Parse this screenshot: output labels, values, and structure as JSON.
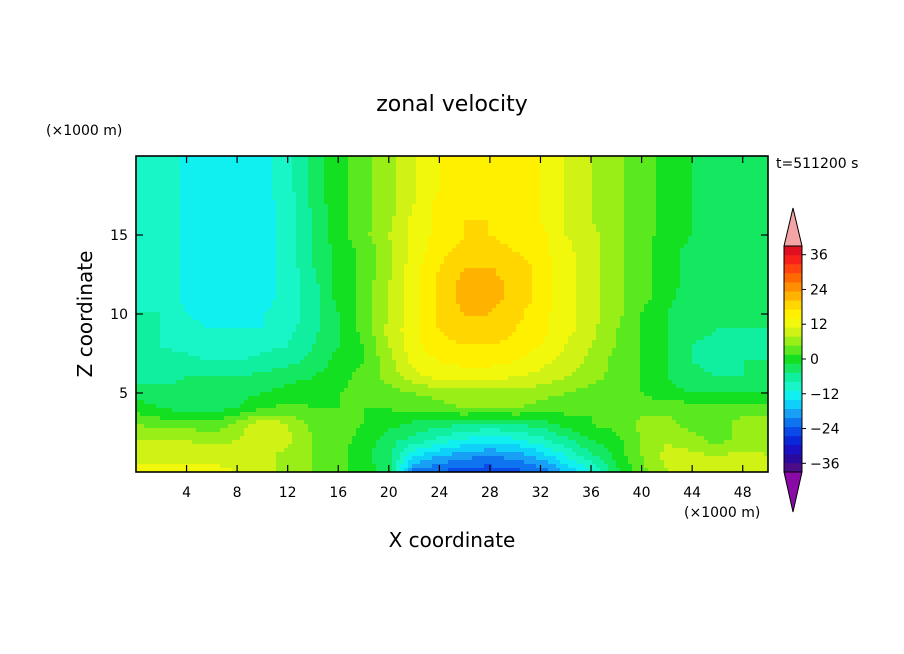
{
  "chart_data": {
    "type": "heatmap",
    "title": "zonal velocity",
    "xlabel": "X coordinate",
    "ylabel": "Z coordinate",
    "x_units": "(×1000 m)",
    "y_units": "(×1000 m)",
    "time_label": "t=511200 s",
    "xlim": [
      0,
      50
    ],
    "ylim": [
      0,
      20
    ],
    "x_ticks": [
      4,
      8,
      12,
      16,
      20,
      24,
      28,
      32,
      36,
      40,
      44,
      48
    ],
    "y_ticks": [
      5,
      10,
      15
    ],
    "colorbar": {
      "levels": [
        -42,
        -39,
        -36,
        -33,
        -30,
        -27,
        -24,
        -21,
        -18,
        -15,
        -12,
        -9,
        -6,
        -3,
        0,
        3,
        6,
        9,
        12,
        15,
        18,
        21,
        24,
        27,
        30,
        33,
        36,
        39,
        42
      ],
      "tick_labels": [
        "36",
        "24",
        "12",
        "0",
        "−12",
        "−24",
        "−36"
      ],
      "colors": [
        "#8a0aa8",
        "#4b0e88",
        "#2a0a9e",
        "#1a10c4",
        "#0a28d8",
        "#0a4ae8",
        "#0f74f0",
        "#18a0f6",
        "#0fd0f8",
        "#10f0f0",
        "#18f5c6",
        "#10eea0",
        "#14e860",
        "#12e020",
        "#5ae81e",
        "#9aee18",
        "#d0f214",
        "#f2f80c",
        "#fff000",
        "#ffd600",
        "#ffb200",
        "#ff8e00",
        "#ff6a00",
        "#ff4410",
        "#f8201a",
        "#e01020",
        "#f4a4a4"
      ]
    },
    "field": {
      "x": [
        0,
        2,
        4,
        6,
        8,
        10,
        12,
        14,
        16,
        18,
        20,
        22,
        24,
        26,
        28,
        30,
        32,
        34,
        36,
        38,
        40,
        42,
        44,
        46,
        48,
        50
      ],
      "z": [
        0,
        1,
        2,
        3,
        4,
        5,
        6,
        7,
        8,
        9,
        10,
        11,
        12,
        13,
        14,
        15,
        16,
        17,
        18,
        19,
        20
      ],
      "u": [
        [
          10,
          10,
          10,
          10,
          9,
          7,
          5,
          3,
          1,
          -2,
          -4,
          -22,
          -24,
          -26,
          -26,
          -25,
          -23,
          -18,
          -12,
          -4,
          2,
          6,
          8,
          9,
          9,
          8
        ],
        [
          8,
          8,
          8,
          8,
          8,
          7,
          5,
          3,
          1,
          -2,
          -5,
          -15,
          -18,
          -20,
          -21,
          -20,
          -17,
          -12,
          -7,
          -2,
          3,
          7,
          7,
          6,
          7,
          6
        ],
        [
          6,
          6,
          6,
          5,
          6,
          8,
          7,
          3,
          1,
          -1,
          -5,
          -7,
          -10,
          -13,
          -14,
          -13,
          -10,
          -7,
          -3,
          -1,
          3,
          6,
          4,
          2,
          4,
          5
        ],
        [
          3,
          2,
          2,
          1,
          4,
          9,
          6,
          2,
          1,
          0,
          -2,
          -4,
          -5,
          -6,
          -7,
          -6,
          -5,
          -2,
          0,
          1,
          4,
          4,
          2,
          2,
          4,
          4
        ],
        [
          -1,
          -3,
          -4,
          -4,
          -3,
          0,
          1,
          0,
          0,
          0,
          0,
          1,
          2,
          3,
          3,
          3,
          2,
          1,
          0,
          1,
          2,
          2,
          2,
          2,
          2,
          2
        ],
        [
          -5,
          -5,
          -5,
          -5,
          -4,
          -3,
          -2,
          -1,
          0,
          1,
          2,
          3,
          4,
          5,
          5,
          5,
          4,
          3,
          2,
          1,
          0,
          -2,
          -3,
          -3,
          -3,
          -3
        ],
        [
          -7,
          -7,
          -6,
          -6,
          -6,
          -5,
          -4,
          -3,
          -1,
          1,
          4,
          8,
          10,
          10,
          10,
          9,
          8,
          6,
          4,
          2,
          0,
          -3,
          -5,
          -6,
          -6,
          -5
        ],
        [
          -8,
          -8,
          -8,
          -9,
          -9,
          -8,
          -7,
          -5,
          -2,
          0,
          5,
          10,
          12,
          13,
          13,
          12,
          10,
          8,
          5,
          2,
          0,
          -3,
          -6,
          -7,
          -6,
          -6
        ],
        [
          -9,
          -9,
          -10,
          -11,
          -11,
          -10,
          -9,
          -6,
          -3,
          0,
          6,
          11,
          14,
          15,
          15,
          14,
          12,
          9,
          6,
          3,
          0,
          -3,
          -6,
          -7,
          -7,
          -6
        ],
        [
          -9,
          -9,
          -11,
          -12,
          -12,
          -12,
          -10,
          -7,
          -3,
          1,
          7,
          11,
          15,
          17,
          17,
          15,
          13,
          10,
          7,
          3,
          0,
          -3,
          -5,
          -6,
          -6,
          -6
        ],
        [
          -9,
          -9,
          -12,
          -13,
          -13,
          -12,
          -11,
          -7,
          -3,
          1,
          6,
          11,
          16,
          18,
          18,
          16,
          13,
          10,
          7,
          4,
          0,
          -3,
          -5,
          -6,
          -6,
          -6
        ],
        [
          -9,
          -10,
          -13,
          -13,
          -13,
          -13,
          -11,
          -7,
          -2,
          1,
          6,
          11,
          16,
          19,
          19,
          17,
          14,
          10,
          7,
          4,
          1,
          -2,
          -5,
          -5,
          -6,
          -6
        ],
        [
          -9,
          -10,
          -13,
          -14,
          -14,
          -13,
          -11,
          -7,
          -2,
          1,
          6,
          11,
          16,
          19,
          19,
          17,
          14,
          10,
          7,
          4,
          1,
          -2,
          -4,
          -5,
          -5,
          -5
        ],
        [
          -9,
          -10,
          -13,
          -14,
          -14,
          -13,
          -11,
          -6,
          -2,
          1,
          5,
          11,
          15,
          18,
          18,
          17,
          14,
          10,
          7,
          4,
          1,
          -2,
          -4,
          -5,
          -5,
          -5
        ],
        [
          -9,
          -10,
          -13,
          -14,
          -14,
          -13,
          -11,
          -6,
          -2,
          1,
          5,
          10,
          14,
          16,
          16,
          15,
          13,
          10,
          7,
          4,
          1,
          -2,
          -4,
          -4,
          -5,
          -5
        ],
        [
          -9,
          -10,
          -13,
          -14,
          -14,
          -13,
          -11,
          -6,
          -1,
          2,
          6,
          10,
          13,
          15,
          15,
          14,
          13,
          9,
          7,
          4,
          1,
          -1,
          -3,
          -4,
          -4,
          -4
        ],
        [
          -9,
          -10,
          -13,
          -14,
          -14,
          -13,
          -11,
          -6,
          -1,
          2,
          5,
          10,
          13,
          15,
          15,
          14,
          12,
          9,
          6,
          4,
          1,
          -1,
          -3,
          -4,
          -4,
          -4
        ],
        [
          -9,
          -10,
          -13,
          -14,
          -14,
          -13,
          -11,
          -5,
          -1,
          2,
          5,
          9,
          13,
          14,
          15,
          14,
          12,
          9,
          6,
          4,
          1,
          -1,
          -3,
          -4,
          -4,
          -4
        ],
        [
          -9,
          -10,
          -13,
          -14,
          -14,
          -13,
          -10,
          -5,
          -1,
          2,
          5,
          9,
          12,
          14,
          14,
          14,
          12,
          9,
          6,
          4,
          1,
          -1,
          -3,
          -4,
          -4,
          -4
        ],
        [
          -9,
          -10,
          -13,
          -14,
          -14,
          -13,
          -10,
          -5,
          -1,
          2,
          5,
          9,
          12,
          13,
          14,
          13,
          12,
          9,
          6,
          4,
          1,
          -1,
          -3,
          -4,
          -4,
          -4
        ],
        [
          -9,
          -10,
          -13,
          -14,
          -14,
          -13,
          -10,
          -5,
          -1,
          2,
          5,
          9,
          12,
          13,
          14,
          13,
          12,
          9,
          6,
          4,
          1,
          -1,
          -3,
          -4,
          -4,
          -4
        ]
      ]
    }
  }
}
